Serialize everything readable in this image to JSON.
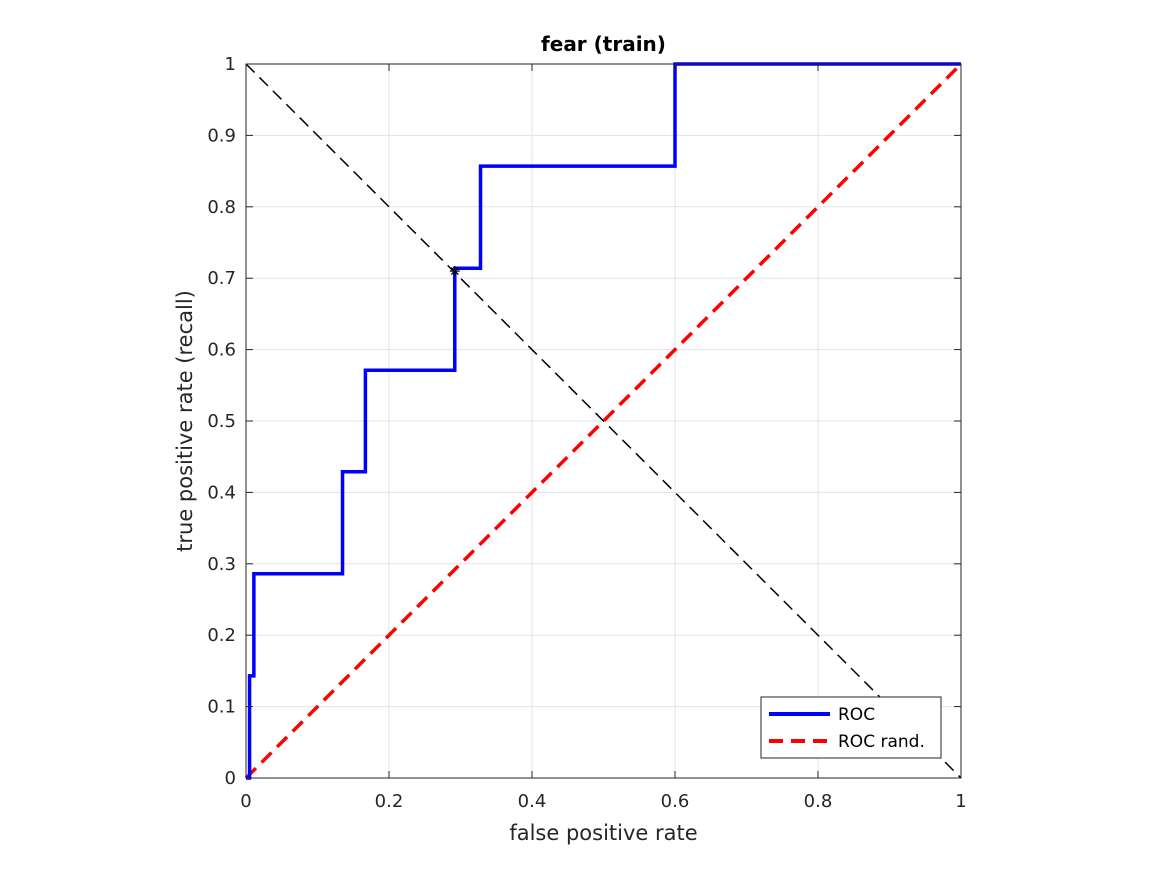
{
  "chart_data": {
    "type": "line",
    "title": "fear (train)",
    "xlabel": "false positive rate",
    "ylabel": "true positive rate (recall)",
    "xlim": [
      0,
      1
    ],
    "ylim": [
      0,
      1
    ],
    "xticks": [
      0,
      0.2,
      0.4,
      0.6,
      0.8,
      1
    ],
    "xtick_labels": [
      "0",
      "0.2",
      "0.4",
      "0.6",
      "0.8",
      "1"
    ],
    "yticks": [
      0,
      0.1,
      0.2,
      0.3,
      0.4,
      0.5,
      0.6,
      0.7,
      0.8,
      0.9,
      1
    ],
    "ytick_labels": [
      "0",
      "0.1",
      "0.2",
      "0.3",
      "0.4",
      "0.5",
      "0.6",
      "0.7",
      "0.8",
      "0.9",
      "1"
    ],
    "grid": true,
    "legend_position": "bottom-right",
    "series": [
      {
        "name": "ROC",
        "color": "#0000ff",
        "style": "solid",
        "x": [
          0,
          0.005,
          0.005,
          0.011,
          0.011,
          0.135,
          0.135,
          0.167,
          0.167,
          0.292,
          0.292,
          0.328,
          0.328,
          0.6,
          0.6,
          1.0
        ],
        "y": [
          0,
          0,
          0.143,
          0.143,
          0.286,
          0.286,
          0.429,
          0.429,
          0.571,
          0.571,
          0.714,
          0.714,
          0.857,
          0.857,
          1.0,
          1.0
        ]
      },
      {
        "name": "ROC rand.",
        "color": "#ff0000",
        "style": "dashed",
        "x": [
          0,
          1
        ],
        "y": [
          0,
          1
        ]
      }
    ],
    "reference_line": {
      "color": "#000000",
      "style": "dashed",
      "x": [
        0,
        1
      ],
      "y": [
        1,
        0
      ]
    },
    "marker": {
      "symbol": "star",
      "color": "#000000",
      "x": 0.292,
      "y": 0.71
    }
  }
}
